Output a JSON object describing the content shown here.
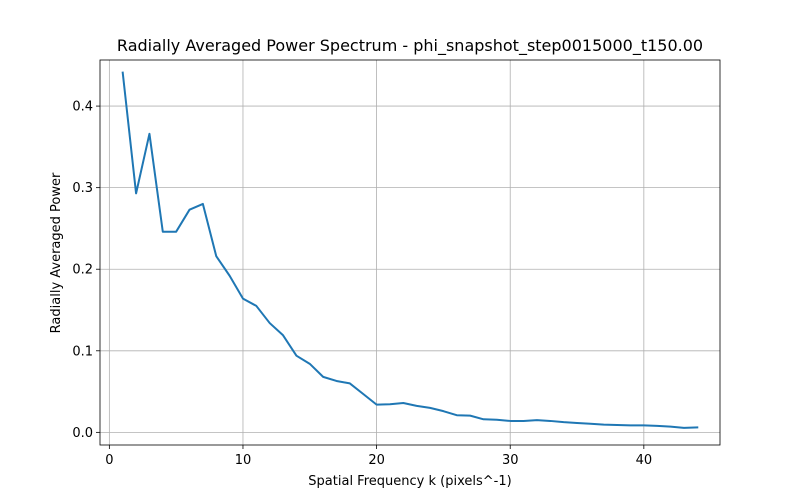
{
  "chart_data": {
    "type": "line",
    "title": "Radially Averaged Power Spectrum - phi_snapshot_step0015000_t150.00",
    "xlabel": "Spatial Frequency k (pixels^-1)",
    "ylabel": "Radially Averaged Power",
    "xlim": [
      -0.7,
      45.7
    ],
    "ylim": [
      -0.0155,
      0.4565
    ],
    "xticks": [
      0,
      10,
      20,
      30,
      40
    ],
    "yticks": [
      0.0,
      0.1,
      0.2,
      0.3,
      0.4
    ],
    "xtick_labels": [
      "0",
      "10",
      "20",
      "30",
      "40"
    ],
    "ytick_labels": [
      "0.0",
      "0.1",
      "0.2",
      "0.3",
      "0.4"
    ],
    "grid": true,
    "line_color": "#1f77b4",
    "series": [
      {
        "x": [
          1,
          2,
          3,
          4,
          5,
          6,
          7,
          8,
          9,
          10,
          11,
          12,
          13,
          14,
          15,
          16,
          17,
          18,
          19,
          20,
          21,
          22,
          23,
          24,
          25,
          26,
          27,
          28,
          29,
          30,
          31,
          32,
          33,
          34,
          35,
          36,
          37,
          38,
          39,
          40,
          41,
          42,
          43,
          44
        ],
        "y": [
          0.441,
          0.293,
          0.366,
          0.246,
          0.246,
          0.273,
          0.28,
          0.216,
          0.192,
          0.164,
          0.155,
          0.134,
          0.119,
          0.094,
          0.084,
          0.068,
          0.063,
          0.06,
          0.047,
          0.034,
          0.0345,
          0.036,
          0.0325,
          0.03,
          0.026,
          0.021,
          0.0205,
          0.016,
          0.0155,
          0.014,
          0.014,
          0.015,
          0.014,
          0.0125,
          0.0115,
          0.0105,
          0.0095,
          0.009,
          0.0085,
          0.0085,
          0.008,
          0.007,
          0.0055,
          0.006
        ]
      }
    ]
  }
}
